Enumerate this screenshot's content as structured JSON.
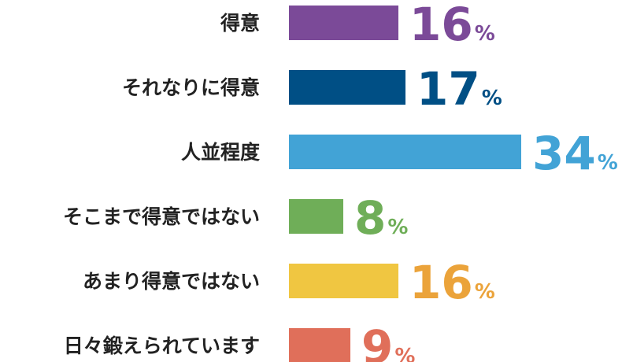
{
  "chart_data": {
    "type": "bar",
    "orientation": "horizontal",
    "categories": [
      "得意",
      "それなりに得意",
      "人並程度",
      "そこまで得意ではない",
      "あまり得意ではない",
      "日々鍛えられています"
    ],
    "values": [
      16,
      17,
      34,
      8,
      16,
      9
    ],
    "unit": "%",
    "colors": [
      "#7b4a98",
      "#004f85",
      "#42a3d6",
      "#6fae58",
      "#f0c641",
      "#e06f5a"
    ],
    "value_colors": [
      "#7b4a98",
      "#004f85",
      "#42a3d6",
      "#6fae58",
      "#eba33a",
      "#e06f5a"
    ],
    "title": "",
    "xlabel": "",
    "ylabel": "",
    "xlim": [
      0,
      34
    ],
    "grid": false,
    "legend": "none"
  }
}
